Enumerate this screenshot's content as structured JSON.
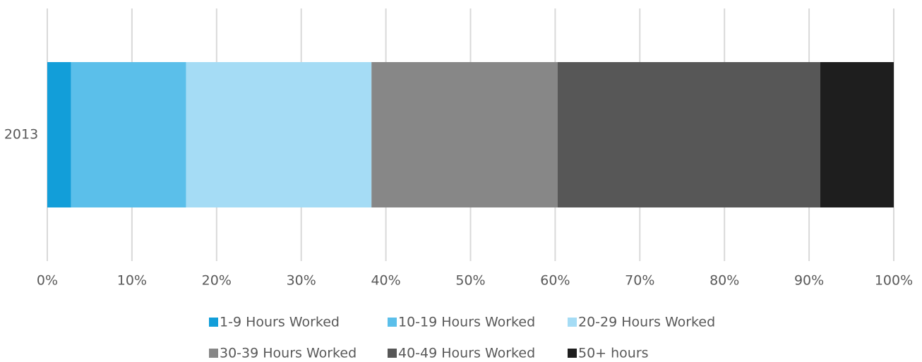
{
  "chart_data": {
    "type": "stacked_bar_horizontal",
    "categories": [
      "2013"
    ],
    "series": [
      {
        "name": "1-9 Hours Worked",
        "color": "#129ed9",
        "values": [
          2.8
        ]
      },
      {
        "name": "10-19 Hours Worked",
        "color": "#5bbfea",
        "values": [
          13.6
        ]
      },
      {
        "name": "20-29 Hours Worked",
        "color": "#a5dcf5",
        "values": [
          21.9
        ]
      },
      {
        "name": "30-39 Hours Worked",
        "color": "#878787",
        "values": [
          22.0
        ]
      },
      {
        "name": "40-49 Hours Worked",
        "color": "#575757",
        "values": [
          31.0
        ]
      },
      {
        "name": "50+ hours",
        "color": "#1e1e1e",
        "values": [
          8.7
        ]
      }
    ],
    "xlim": [
      0,
      100
    ],
    "xticks": [
      {
        "value": 0,
        "label": "0%"
      },
      {
        "value": 10,
        "label": "10%"
      },
      {
        "value": 20,
        "label": "20%"
      },
      {
        "value": 30,
        "label": "30%"
      },
      {
        "value": 40,
        "label": "40%"
      },
      {
        "value": 50,
        "label": "50%"
      },
      {
        "value": 60,
        "label": "60%"
      },
      {
        "value": 70,
        "label": "70%"
      },
      {
        "value": 80,
        "label": "80%"
      },
      {
        "value": 90,
        "label": "90%"
      },
      {
        "value": 100,
        "label": "100%"
      }
    ],
    "grid": true,
    "legend": "bottom"
  }
}
